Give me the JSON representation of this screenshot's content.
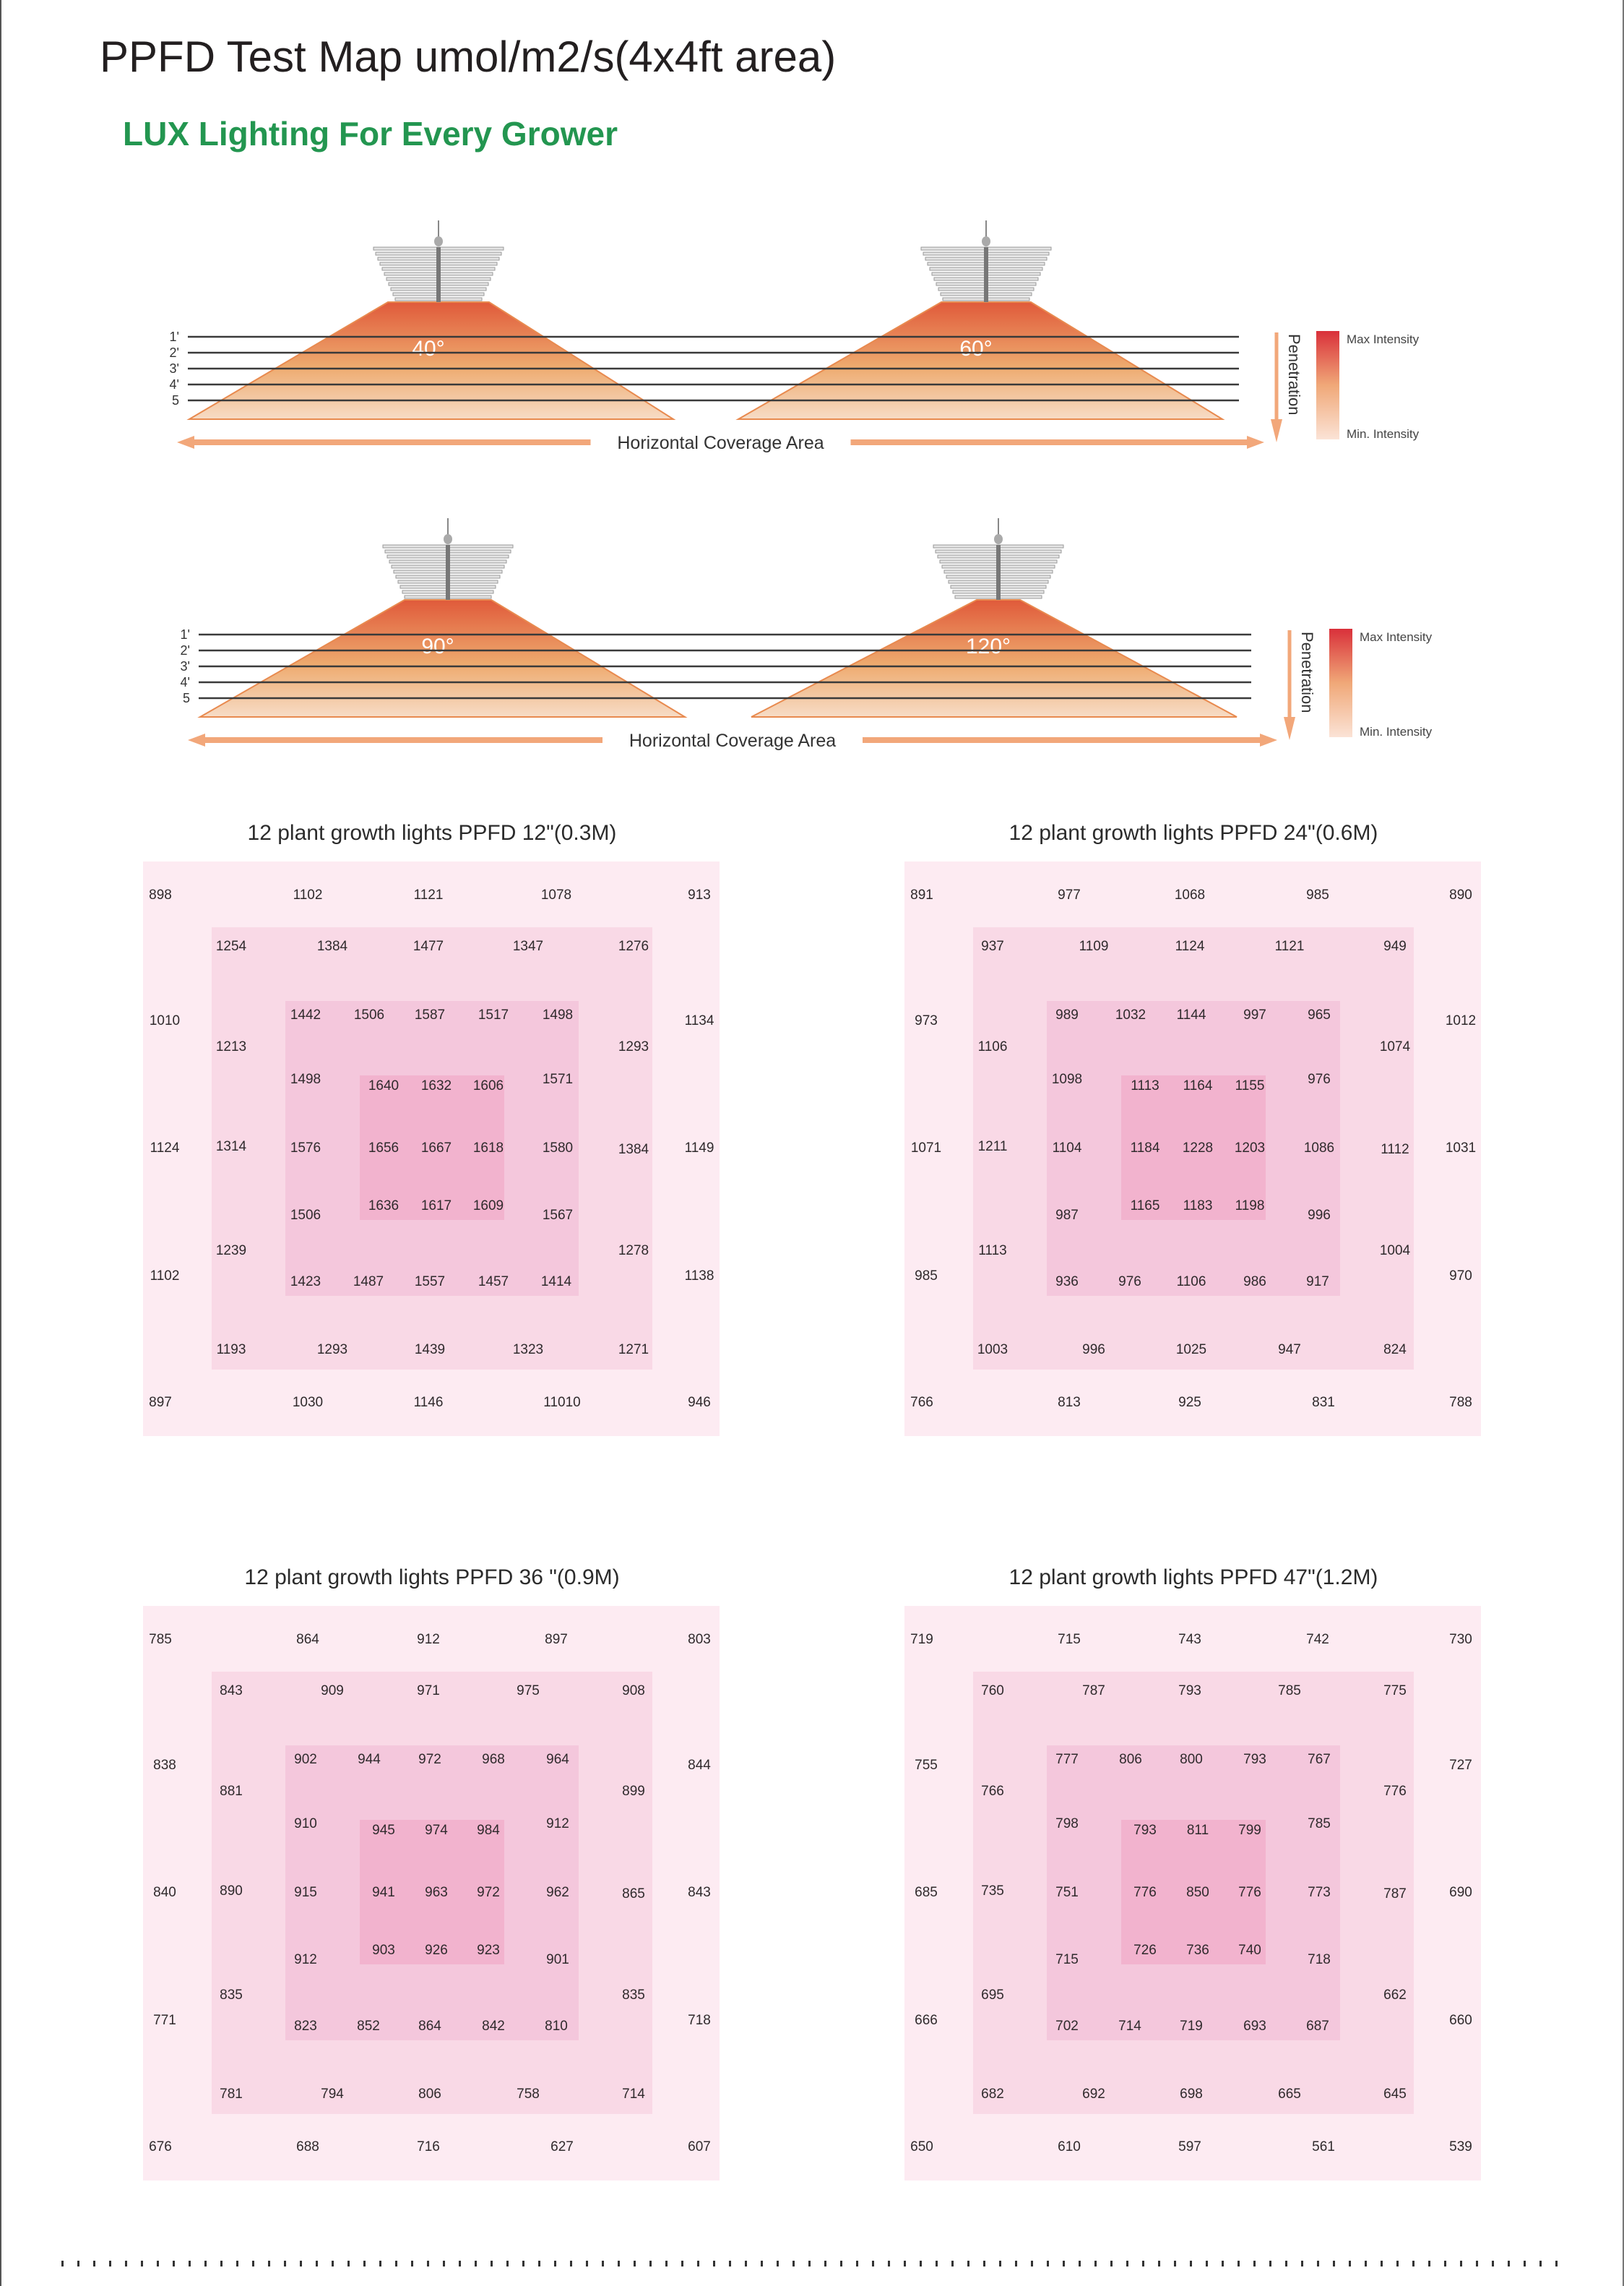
{
  "header": {
    "title": "PPFD Test Map umol/m2/s(4x4ft area)",
    "brand_tagline": "LUX Lighting For Every Grower"
  },
  "diagrams": [
    {
      "beams": [
        {
          "angle_label": "40°"
        },
        {
          "angle_label": "60°"
        }
      ],
      "height_labels": [
        "1'",
        "2'",
        "3'",
        "4'",
        "5"
      ],
      "coverage_label": "Horizontal Coverage Area",
      "penetration_label": "Penetration",
      "legend_max": "Max Intensity",
      "legend_min": "Min. Intensity"
    },
    {
      "beams": [
        {
          "angle_label": "90°"
        },
        {
          "angle_label": "120°"
        }
      ],
      "height_labels": [
        "1'",
        "2'",
        "3'",
        "4'",
        "5"
      ],
      "coverage_label": "Horizontal Coverage Area",
      "penetration_label": "Penetration",
      "legend_max": "Max Intensity",
      "legend_min": "Min. Intensity"
    }
  ],
  "colors": {
    "brand_green": "#239650",
    "beam_top": "#e05a3a",
    "beam_bottom": "#f7dcc6",
    "legend_max": "#d9303a",
    "legend_min": "#fbe3d6",
    "arrow": "#f2a77a",
    "layer_outer": "#fdebf2",
    "layer_2": "#f9d9e6",
    "layer_3": "#f4c7dc",
    "layer_inner": "#f2b3ce"
  },
  "chart_data": [
    {
      "type": "heatmap",
      "title": "12 plant growth lights  PPFD 12\"(0.3M)",
      "unit": "umol/m2/s",
      "area": "4x4ft",
      "height": "12\" (0.3M)",
      "rings": {
        "outer": {
          "top": [
            898,
            1102,
            1121,
            1078,
            913
          ],
          "left": [
            1010,
            1124,
            1102
          ],
          "right": [
            1134,
            1149,
            1138
          ],
          "bottom": [
            897,
            1030,
            1146,
            11010,
            946
          ]
        },
        "second": {
          "top": [
            1254,
            1384,
            1477,
            1347,
            1276
          ],
          "left": [
            1213,
            1314,
            1239
          ],
          "right": [
            1293,
            1384,
            1278
          ],
          "bottom": [
            1193,
            1293,
            1439,
            1323,
            1271
          ]
        },
        "third": {
          "top": [
            1442,
            1506,
            1587,
            1517,
            1498
          ],
          "left": [
            1498,
            1576,
            1506
          ],
          "right": [
            1571,
            1580,
            1567
          ],
          "bottom": [
            1423,
            1487,
            1557,
            1457,
            1414
          ]
        },
        "inner": {
          "rows": [
            [
              1640,
              1632,
              1606
            ],
            [
              1656,
              1667,
              1618
            ],
            [
              1636,
              1617,
              1609
            ]
          ]
        }
      }
    },
    {
      "type": "heatmap",
      "title": "12 plant growth lights  PPFD 24\"(0.6M)",
      "unit": "umol/m2/s",
      "area": "4x4ft",
      "height": "24\" (0.6M)",
      "rings": {
        "outer": {
          "top": [
            891,
            977,
            1068,
            985,
            890
          ],
          "left": [
            973,
            1071,
            985
          ],
          "right": [
            1012,
            1031,
            970
          ],
          "bottom": [
            766,
            813,
            925,
            831,
            788
          ]
        },
        "second": {
          "top": [
            937,
            1109,
            1124,
            1121,
            949
          ],
          "left": [
            1106,
            1211,
            1113
          ],
          "right": [
            1074,
            1112,
            1004
          ],
          "bottom": [
            1003,
            996,
            1025,
            947,
            824
          ]
        },
        "third": {
          "top": [
            989,
            1032,
            1144,
            997,
            965
          ],
          "left": [
            1098,
            1104,
            987
          ],
          "right": [
            976,
            1086,
            996
          ],
          "bottom": [
            936,
            976,
            1106,
            986,
            917
          ]
        },
        "inner": {
          "rows": [
            [
              1113,
              1164,
              1155
            ],
            [
              1184,
              1228,
              1203
            ],
            [
              1165,
              1183,
              1198
            ]
          ]
        }
      }
    },
    {
      "type": "heatmap",
      "title": "12 plant growth lights PPFD 36 \"(0.9M)",
      "unit": "umol/m2/s",
      "area": "4x4ft",
      "height": "36\" (0.9M)",
      "rings": {
        "outer": {
          "top": [
            785,
            864,
            912,
            897,
            803
          ],
          "left": [
            838,
            840,
            771
          ],
          "right": [
            844,
            843,
            718
          ],
          "bottom": [
            676,
            688,
            716,
            627,
            607
          ]
        },
        "second": {
          "top": [
            843,
            909,
            971,
            975,
            908
          ],
          "left": [
            881,
            890,
            835
          ],
          "right": [
            899,
            865,
            835
          ],
          "bottom": [
            781,
            794,
            806,
            758,
            714
          ]
        },
        "third": {
          "top": [
            902,
            944,
            972,
            968,
            964
          ],
          "left": [
            910,
            915,
            912
          ],
          "right": [
            912,
            962,
            901
          ],
          "bottom": [
            823,
            852,
            864,
            842,
            810
          ]
        },
        "inner": {
          "rows": [
            [
              945,
              974,
              984
            ],
            [
              941,
              963,
              972
            ],
            [
              903,
              926,
              923
            ]
          ]
        }
      }
    },
    {
      "type": "heatmap",
      "title": "12 plant growth lights  PPFD 47\"(1.2M)",
      "unit": "umol/m2/s",
      "area": "4x4ft",
      "height": "47\" (1.2M)",
      "rings": {
        "outer": {
          "top": [
            719,
            715,
            743,
            742,
            730
          ],
          "left": [
            755,
            685,
            666
          ],
          "right": [
            727,
            690,
            660
          ],
          "bottom": [
            650,
            610,
            597,
            561,
            539
          ]
        },
        "second": {
          "top": [
            760,
            787,
            793,
            785,
            775
          ],
          "left": [
            766,
            735,
            695
          ],
          "right": [
            776,
            787,
            662
          ],
          "bottom": [
            682,
            692,
            698,
            665,
            645
          ]
        },
        "third": {
          "top": [
            777,
            806,
            800,
            793,
            767
          ],
          "left": [
            798,
            751,
            715
          ],
          "right": [
            785,
            773,
            718
          ],
          "bottom": [
            702,
            714,
            719,
            693,
            687
          ]
        },
        "inner": {
          "rows": [
            [
              793,
              811,
              799
            ],
            [
              776,
              850,
              776
            ],
            [
              726,
              736,
              740
            ]
          ]
        }
      }
    }
  ]
}
